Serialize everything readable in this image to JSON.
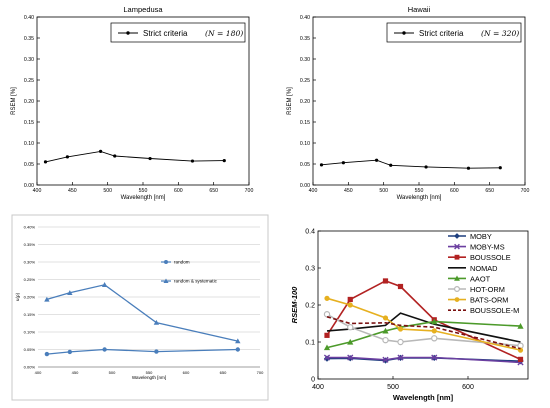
{
  "chart_data": [
    {
      "type": "line",
      "title": "Lampedusa",
      "xlabel": "Wavelength [nm]",
      "ylabel": "RSEM [%]",
      "xlim": [
        400,
        700
      ],
      "ylim": [
        0,
        0.4
      ],
      "xticks": [
        400,
        450,
        500,
        550,
        600,
        650,
        700
      ],
      "yticks": [
        0,
        0.05,
        0.1,
        0.15,
        0.2,
        0.25,
        0.3,
        0.35,
        0.4
      ],
      "xtick_labels": [
        "400",
        "450",
        "500",
        "550",
        "600",
        "650",
        "700"
      ],
      "ytick_labels": [
        "0.00",
        "0.05",
        "0.10",
        "0.15",
        "0.20",
        "0.25",
        "0.30",
        "0.35",
        "0.40"
      ],
      "grid": false,
      "legend": "top-right",
      "series": [
        {
          "name": "Strict criteria",
          "legend_suffix": "(N = 180)",
          "color": "#000000",
          "x": [
            412,
            443,
            490,
            510,
            560,
            620,
            665
          ],
          "y": [
            0.055,
            0.067,
            0.08,
            0.069,
            0.063,
            0.057,
            0.058
          ]
        }
      ]
    },
    {
      "type": "line",
      "title": "Hawaii",
      "xlabel": "Wavelength [nm]",
      "ylabel": "RSEM [%]",
      "xlim": [
        400,
        700
      ],
      "ylim": [
        0,
        0.4
      ],
      "xticks": [
        400,
        450,
        500,
        550,
        600,
        650,
        700
      ],
      "yticks": [
        0,
        0.05,
        0.1,
        0.15,
        0.2,
        0.25,
        0.3,
        0.35,
        0.4
      ],
      "xtick_labels": [
        "400",
        "450",
        "500",
        "550",
        "600",
        "650",
        "700"
      ],
      "ytick_labels": [
        "0.00",
        "0.05",
        "0.10",
        "0.15",
        "0.20",
        "0.25",
        "0.30",
        "0.35",
        "0.40"
      ],
      "grid": false,
      "legend": "top-right",
      "series": [
        {
          "name": "Strict criteria",
          "legend_suffix": "(N = 320)",
          "color": "#000000",
          "x": [
            412,
            443,
            490,
            510,
            560,
            620,
            665
          ],
          "y": [
            0.048,
            0.053,
            0.059,
            0.047,
            0.043,
            0.04,
            0.041
          ]
        }
      ]
    },
    {
      "type": "line",
      "title": "",
      "xlabel": "Wavelength [nm]",
      "ylabel": "u(ρ)",
      "xlim": [
        400,
        700
      ],
      "ylim": [
        0,
        0.4
      ],
      "xticks": [
        400,
        450,
        500,
        550,
        600,
        650,
        700
      ],
      "yticks": [
        0,
        0.05,
        0.1,
        0.15,
        0.2,
        0.25,
        0.3,
        0.35,
        0.4
      ],
      "xtick_labels": [
        "400",
        "450",
        "500",
        "550",
        "600",
        "650",
        "700"
      ],
      "ytick_labels": [
        "0.00%",
        "0.05%",
        "0.10%",
        "0.15%",
        "0.20%",
        "0.25%",
        "0.30%",
        "0.35%",
        "0.40%"
      ],
      "grid": true,
      "legend": "top-right, inline",
      "series": [
        {
          "name": "random",
          "color": "#4a7ebb",
          "marker": "circle",
          "x": [
            412,
            443,
            490,
            560,
            670
          ],
          "y": [
            0.037,
            0.043,
            0.05,
            0.044,
            0.05
          ]
        },
        {
          "name": "random & systematic",
          "color": "#4a7ebb",
          "marker": "triangle",
          "x": [
            412,
            443,
            490,
            560,
            670
          ],
          "y": [
            0.193,
            0.212,
            0.235,
            0.127,
            0.074
          ]
        }
      ]
    },
    {
      "type": "line",
      "title": "",
      "xlabel": "Wavelength [nm]",
      "ylabel": "RSEM-100",
      "xlim": [
        400,
        680
      ],
      "ylim": [
        0,
        0.4
      ],
      "xticks": [
        400,
        500,
        600
      ],
      "yticks": [
        0,
        0.1,
        0.2,
        0.3,
        0.4
      ],
      "xtick_labels": [
        "400",
        "500",
        "600"
      ],
      "ytick_labels": [
        "0",
        "0.1",
        "0.2",
        "0.3",
        "0.4"
      ],
      "grid": false,
      "legend": "top-right",
      "series": [
        {
          "name": "MOBY",
          "color": "#1f3f7f",
          "marker": "diamond",
          "x": [
            412,
            443,
            490,
            510,
            555,
            670
          ],
          "y": [
            0.055,
            0.056,
            0.05,
            0.057,
            0.057,
            0.048
          ]
        },
        {
          "name": "MOBY-MS",
          "color": "#6b3fa0",
          "marker": "x",
          "x": [
            412,
            443,
            490,
            510,
            555,
            670
          ],
          "y": [
            0.058,
            0.058,
            0.052,
            0.058,
            0.058,
            0.045
          ]
        },
        {
          "name": "BOUSSOLE",
          "color": "#b22222",
          "marker": "square",
          "x": [
            412,
            443,
            490,
            510,
            555,
            670
          ],
          "y": [
            0.118,
            0.215,
            0.265,
            0.25,
            0.16,
            0.053
          ]
        },
        {
          "name": "NOMAD",
          "color": "#111111",
          "marker": "none",
          "x": [
            412,
            443,
            490,
            510,
            555,
            670
          ],
          "y": [
            0.13,
            0.135,
            0.145,
            0.178,
            0.148,
            0.1
          ]
        },
        {
          "name": "AAOT",
          "color": "#4c9a2a",
          "marker": "triangle",
          "x": [
            412,
            443,
            490,
            510,
            555,
            670
          ],
          "y": [
            0.085,
            0.1,
            0.13,
            0.14,
            0.155,
            0.143
          ]
        },
        {
          "name": "HOT-ORM",
          "color": "#b8b8b8",
          "marker": "circle",
          "x": [
            412,
            443,
            490,
            510,
            555,
            670
          ],
          "y": [
            0.175,
            0.14,
            0.105,
            0.1,
            0.11,
            0.09
          ]
        },
        {
          "name": "BATS-ORM",
          "color": "#e6b020",
          "marker": "circle",
          "x": [
            412,
            443,
            490,
            510,
            555,
            670
          ],
          "y": [
            0.218,
            0.2,
            0.165,
            0.135,
            0.13,
            0.078
          ]
        },
        {
          "name": "BOUSSOLE-M",
          "color": "#7a1010",
          "marker": "none",
          "dashed": true,
          "x": [
            412,
            443,
            490,
            510,
            555,
            670
          ],
          "y": [
            0.168,
            0.15,
            0.152,
            0.145,
            0.14,
            0.082
          ]
        }
      ]
    }
  ]
}
